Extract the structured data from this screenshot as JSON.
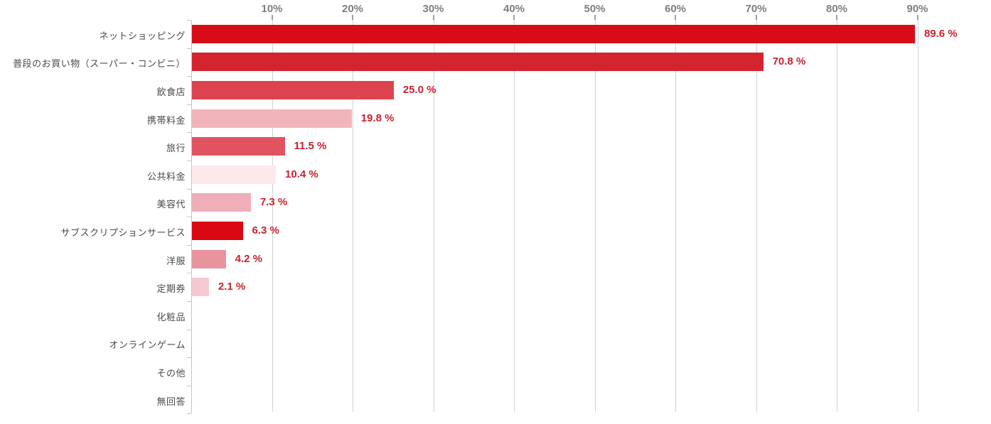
{
  "chart_data": {
    "type": "bar",
    "orientation": "horizontal",
    "title": "",
    "xlabel": "",
    "ylabel": "",
    "xlim": [
      0,
      100
    ],
    "grid": true,
    "x_ticks": [
      {
        "value": 10,
        "label": "10%"
      },
      {
        "value": 20,
        "label": "20%"
      },
      {
        "value": 30,
        "label": "30%"
      },
      {
        "value": 40,
        "label": "40%"
      },
      {
        "value": 50,
        "label": "50%"
      },
      {
        "value": 60,
        "label": "60%"
      },
      {
        "value": 70,
        "label": "70%"
      },
      {
        "value": 80,
        "label": "80%"
      },
      {
        "value": 90,
        "label": "90%"
      }
    ],
    "bars": [
      {
        "category": "ネットショッピング",
        "value": 89.6,
        "value_label": "89.6 %",
        "color": "#d70c18"
      },
      {
        "category": "普段のお買い物（スーパー・コンビニ）",
        "value": 70.8,
        "value_label": "70.8 %",
        "color": "#d3242f"
      },
      {
        "category": "飲食店",
        "value": 25.0,
        "value_label": "25.0 %",
        "color": "#dd434f"
      },
      {
        "category": "携帯料金",
        "value": 19.8,
        "value_label": "19.8 %",
        "color": "#f2b4bb"
      },
      {
        "category": "旅行",
        "value": 11.5,
        "value_label": "11.5 %",
        "color": "#e25360"
      },
      {
        "category": "公共料金",
        "value": 10.4,
        "value_label": "10.4 %",
        "color": "#fce9eb"
      },
      {
        "category": "美容代",
        "value": 7.3,
        "value_label": "7.3 %",
        "color": "#efaeb9"
      },
      {
        "category": "サブスクリプションサービス",
        "value": 6.3,
        "value_label": "6.3 %",
        "color": "#da0812"
      },
      {
        "category": "洋服",
        "value": 4.2,
        "value_label": "4.2 %",
        "color": "#e8949f"
      },
      {
        "category": "定期券",
        "value": 2.1,
        "value_label": "2.1 %",
        "color": "#f5c9d2"
      },
      {
        "category": "化粧品",
        "value": 0,
        "value_label": "",
        "color": null
      },
      {
        "category": "オンラインゲーム",
        "value": 0,
        "value_label": "",
        "color": null
      },
      {
        "category": "その他",
        "value": 0,
        "value_label": "",
        "color": null
      },
      {
        "category": "無回答",
        "value": 0,
        "value_label": "",
        "color": null
      }
    ],
    "colors": {
      "value_label": "#cb2130",
      "axis_line": "#b9c6cc",
      "gridline": "#cfd2d4",
      "tick_label": "#7e7e7e",
      "category_label": "#4a4a4a",
      "background": "#ffffff"
    }
  }
}
